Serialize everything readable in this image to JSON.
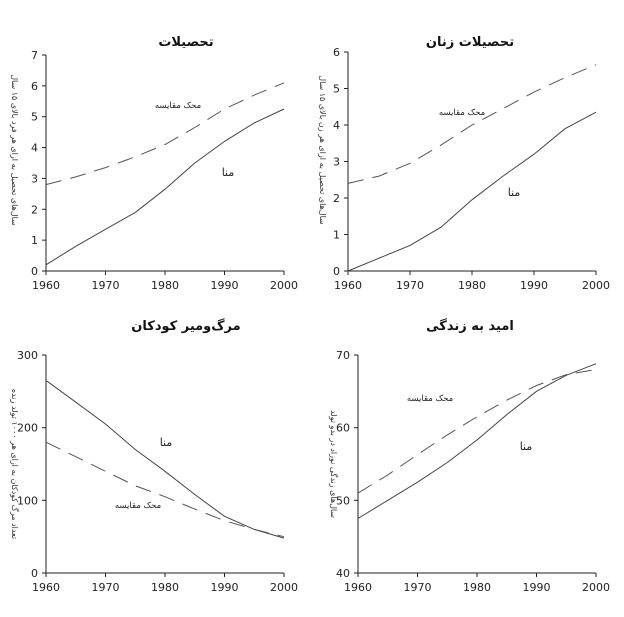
{
  "chart_data": [
    {
      "type": "line",
      "title": "تحصیلات",
      "ylabel": "سال‌های تحصیل به ازای هر فرد بالای ۱۵ سال",
      "xlim": [
        1960,
        2000
      ],
      "ylim": [
        0,
        7
      ],
      "xticks": [
        "1960",
        "1970",
        "1980",
        "1990",
        "2000"
      ],
      "yticks": [
        "0",
        "1",
        "2",
        "3",
        "4",
        "5",
        "6",
        "7"
      ],
      "series": [
        {
          "name": "منا",
          "style": "solid",
          "x": [
            1960,
            1965,
            1970,
            1975,
            1980,
            1985,
            1990,
            1995,
            2000
          ],
          "y": [
            0.2,
            0.8,
            1.35,
            1.9,
            2.65,
            3.5,
            4.2,
            4.8,
            5.25
          ]
        },
        {
          "name": "محک مقایسه",
          "style": "dashed",
          "x": [
            1960,
            1965,
            1970,
            1975,
            1980,
            1985,
            1990,
            1995,
            2000
          ],
          "y": [
            2.8,
            3.05,
            3.35,
            3.7,
            4.1,
            4.65,
            5.25,
            5.7,
            6.1
          ]
        }
      ]
    },
    {
      "type": "line",
      "title": "تحصیلات زنان",
      "ylabel": "سال‌های تحصیل به ازای هر زن بالای ۱۵ سال",
      "xlim": [
        1960,
        2000
      ],
      "ylim": [
        0,
        6
      ],
      "xticks": [
        "1960",
        "1970",
        "1980",
        "1990",
        "2000"
      ],
      "yticks": [
        "0",
        "1",
        "2",
        "3",
        "4",
        "5",
        "6"
      ],
      "series": [
        {
          "name": "منا",
          "style": "solid",
          "x": [
            1960,
            1965,
            1970,
            1975,
            1980,
            1985,
            1990,
            1995,
            2000
          ],
          "y": [
            0.0,
            0.35,
            0.7,
            1.2,
            1.95,
            2.6,
            3.2,
            3.9,
            4.35
          ]
        },
        {
          "name": "محک مقایسه",
          "style": "dashed",
          "x": [
            1960,
            1965,
            1970,
            1975,
            1980,
            1985,
            1990,
            1995,
            2000
          ],
          "y": [
            2.4,
            2.6,
            2.95,
            3.45,
            4.0,
            4.45,
            4.9,
            5.3,
            5.65
          ]
        }
      ]
    },
    {
      "type": "line",
      "title": "مرگ‌ومیر کودکان",
      "ylabel": "تعداد مرگ کودکان به ازای هر ۱۰۰۰ تولد زنده",
      "xlim": [
        1960,
        2000
      ],
      "ylim": [
        0,
        300
      ],
      "xticks": [
        "1960",
        "1970",
        "1980",
        "1990",
        "2000"
      ],
      "yticks": [
        "0",
        "100",
        "200",
        "300"
      ],
      "series": [
        {
          "name": "منا",
          "style": "solid",
          "x": [
            1960,
            1965,
            1970,
            1975,
            1980,
            1985,
            1990,
            1995,
            2000
          ],
          "y": [
            265,
            235,
            205,
            170,
            140,
            108,
            78,
            60,
            48
          ]
        },
        {
          "name": "محک مقایسه",
          "style": "dashed",
          "x": [
            1960,
            1965,
            1970,
            1975,
            1980,
            1985,
            1990,
            1995,
            2000
          ],
          "y": [
            180,
            160,
            140,
            120,
            105,
            88,
            72,
            60,
            50
          ]
        }
      ]
    },
    {
      "type": "line",
      "title": "امید به زندگی",
      "ylabel": "سال‌های زندگی نوزاد در بدو تولد",
      "xlim": [
        1960,
        2000
      ],
      "ylim": [
        40,
        70
      ],
      "xticks": [
        "1960",
        "1970",
        "1980",
        "1990",
        "2000"
      ],
      "yticks": [
        "40",
        "50",
        "60",
        "70"
      ],
      "series": [
        {
          "name": "منا",
          "style": "solid",
          "x": [
            1960,
            1965,
            1970,
            1975,
            1980,
            1985,
            1990,
            1995,
            2000
          ],
          "y": [
            47.5,
            50.0,
            52.5,
            55.2,
            58.3,
            61.8,
            65.0,
            67.2,
            68.8
          ]
        },
        {
          "name": "محک مقایسه",
          "style": "dashed",
          "x": [
            1960,
            1965,
            1970,
            1975,
            1980,
            1985,
            1990,
            1995,
            2000
          ],
          "y": [
            51.0,
            53.5,
            56.3,
            59.0,
            61.5,
            63.8,
            65.8,
            67.3,
            68.0
          ]
        }
      ]
    }
  ]
}
